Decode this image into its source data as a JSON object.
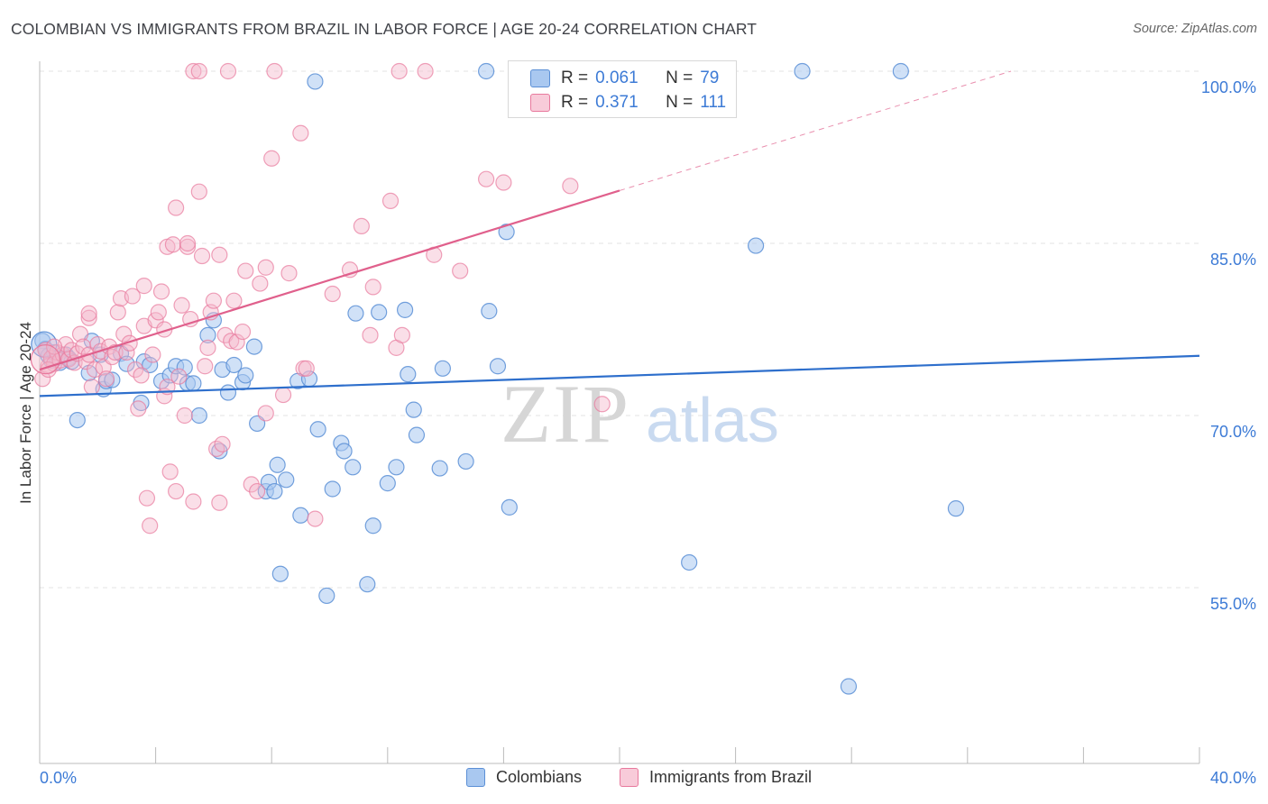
{
  "title": "COLOMBIAN VS IMMIGRANTS FROM BRAZIL IN LABOR FORCE | AGE 20-24 CORRELATION CHART",
  "source": "Source: ZipAtlas.com",
  "watermark": {
    "zip": "ZIP",
    "atlas": "atlas"
  },
  "legend": {
    "r_label": "R =",
    "n_label": "N =",
    "series": [
      {
        "r": "0.061",
        "n": "79"
      },
      {
        "r": "0.371",
        "n": "111"
      }
    ]
  },
  "bottom_legend": [
    "Colombians",
    "Immigrants from Brazil"
  ],
  "colors": {
    "blue_fill": "#a9c8f0",
    "blue_stroke": "#5b8fd6",
    "blue_line": "#2e6fcc",
    "pink_fill": "#f5b8cb",
    "pink_stroke": "#e8799d",
    "pink_line": "#e0608c",
    "tick_text": "#3d7bd6",
    "grid": "#e3e3e3"
  },
  "chart_data": {
    "type": "scatter",
    "title": "COLOMBIAN VS IMMIGRANTS FROM BRAZIL IN LABOR FORCE | AGE 20-24 CORRELATION CHART",
    "xlabel": "",
    "ylabel": "In Labor Force | Age 20-24",
    "xlim": [
      0,
      40
    ],
    "ylim": [
      40,
      102
    ],
    "x_tick_labels": [
      "0.0%",
      "40.0%"
    ],
    "y_ticks": [
      55,
      70,
      85,
      100
    ],
    "y_tick_labels": [
      "55.0%",
      "70.0%",
      "85.0%",
      "100.0%"
    ],
    "grid": true,
    "legend_position": "top-center",
    "series": [
      {
        "name": "Colombians",
        "r": 0.061,
        "n": 79,
        "trend": {
          "x": [
            0,
            40
          ],
          "y": [
            71.7,
            75.2
          ]
        },
        "points": [
          [
            0.1,
            76.5
          ],
          [
            0.2,
            75.8
          ],
          [
            0.3,
            75.2
          ],
          [
            0.4,
            74.8
          ],
          [
            0.5,
            75.5
          ],
          [
            0.6,
            75.0
          ],
          [
            0.7,
            74.6
          ],
          [
            0.9,
            75.3
          ],
          [
            1.0,
            75.0
          ],
          [
            1.1,
            74.7
          ],
          [
            1.3,
            69.6
          ],
          [
            1.7,
            73.7
          ],
          [
            1.8,
            76.5
          ],
          [
            2.1,
            75.3
          ],
          [
            2.2,
            72.3
          ],
          [
            2.3,
            73.0
          ],
          [
            2.5,
            73.1
          ],
          [
            2.8,
            75.4
          ],
          [
            3.0,
            74.5
          ],
          [
            3.5,
            71.1
          ],
          [
            3.6,
            74.7
          ],
          [
            3.8,
            74.4
          ],
          [
            4.2,
            73.0
          ],
          [
            4.5,
            73.5
          ],
          [
            4.7,
            74.3
          ],
          [
            5.0,
            74.2
          ],
          [
            5.1,
            72.8
          ],
          [
            5.3,
            72.8
          ],
          [
            5.5,
            70.0
          ],
          [
            5.8,
            77.0
          ],
          [
            6.0,
            78.3
          ],
          [
            6.2,
            66.9
          ],
          [
            6.3,
            74.0
          ],
          [
            6.5,
            72.0
          ],
          [
            6.7,
            74.4
          ],
          [
            7.0,
            72.9
          ],
          [
            7.1,
            73.5
          ],
          [
            7.4,
            76.0
          ],
          [
            7.5,
            69.3
          ],
          [
            7.8,
            63.4
          ],
          [
            7.9,
            64.2
          ],
          [
            8.1,
            63.4
          ],
          [
            8.2,
            65.7
          ],
          [
            8.3,
            56.2
          ],
          [
            8.5,
            64.4
          ],
          [
            8.9,
            73.0
          ],
          [
            9.0,
            61.3
          ],
          [
            9.3,
            73.2
          ],
          [
            9.5,
            99.1
          ],
          [
            9.6,
            68.8
          ],
          [
            9.9,
            54.3
          ],
          [
            10.1,
            63.6
          ],
          [
            10.4,
            67.6
          ],
          [
            10.5,
            66.9
          ],
          [
            10.8,
            65.5
          ],
          [
            10.9,
            78.9
          ],
          [
            11.3,
            55.3
          ],
          [
            11.5,
            60.4
          ],
          [
            11.7,
            79.0
          ],
          [
            12.0,
            64.1
          ],
          [
            12.3,
            65.5
          ],
          [
            12.6,
            79.2
          ],
          [
            12.7,
            73.6
          ],
          [
            12.9,
            70.5
          ],
          [
            13.0,
            68.3
          ],
          [
            13.8,
            65.4
          ],
          [
            13.9,
            74.1
          ],
          [
            14.7,
            66.0
          ],
          [
            15.4,
            100.0
          ],
          [
            15.5,
            79.1
          ],
          [
            15.8,
            74.3
          ],
          [
            16.1,
            86.0
          ],
          [
            16.2,
            62.0
          ],
          [
            22.4,
            57.2
          ],
          [
            24.7,
            84.8
          ],
          [
            26.3,
            100.0
          ],
          [
            27.9,
            46.4
          ],
          [
            29.7,
            100.0
          ],
          [
            31.6,
            61.9
          ]
        ]
      },
      {
        "name": "Immigrants from Brazil",
        "r": 0.371,
        "n": 111,
        "trend": {
          "x": [
            0,
            20
          ],
          "y": [
            74.0,
            89.6
          ]
        },
        "trend_extension": {
          "x": [
            20,
            33.5
          ],
          "y": [
            89.6,
            100.0
          ]
        },
        "points": [
          [
            0.1,
            73.2
          ],
          [
            0.2,
            75.7
          ],
          [
            0.3,
            74.3
          ],
          [
            0.4,
            75.0
          ],
          [
            0.5,
            74.5
          ],
          [
            0.6,
            75.5
          ],
          [
            0.7,
            74.8
          ],
          [
            0.8,
            75.3
          ],
          [
            0.9,
            76.2
          ],
          [
            1.0,
            74.9
          ],
          [
            1.1,
            75.7
          ],
          [
            1.2,
            74.6
          ],
          [
            1.3,
            75.4
          ],
          [
            1.4,
            77.1
          ],
          [
            1.5,
            76.0
          ],
          [
            1.6,
            74.7
          ],
          [
            1.7,
            75.3
          ],
          [
            1.8,
            72.5
          ],
          [
            1.7,
            78.5
          ],
          [
            1.7,
            78.9
          ],
          [
            1.9,
            74.0
          ],
          [
            2.0,
            76.2
          ],
          [
            2.1,
            75.6
          ],
          [
            2.2,
            74.2
          ],
          [
            2.3,
            73.2
          ],
          [
            2.4,
            76.0
          ],
          [
            2.5,
            75.1
          ],
          [
            2.6,
            75.5
          ],
          [
            2.7,
            79.0
          ],
          [
            2.8,
            80.2
          ],
          [
            2.9,
            77.1
          ],
          [
            3.0,
            75.5
          ],
          [
            3.1,
            76.3
          ],
          [
            3.2,
            80.4
          ],
          [
            3.3,
            74.0
          ],
          [
            3.4,
            70.6
          ],
          [
            3.5,
            73.5
          ],
          [
            3.6,
            81.3
          ],
          [
            3.6,
            77.8
          ],
          [
            3.7,
            62.8
          ],
          [
            3.8,
            60.4
          ],
          [
            3.9,
            75.3
          ],
          [
            4.0,
            78.3
          ],
          [
            4.1,
            79.0
          ],
          [
            4.2,
            80.8
          ],
          [
            4.3,
            77.5
          ],
          [
            4.3,
            71.7
          ],
          [
            4.4,
            72.5
          ],
          [
            4.4,
            84.7
          ],
          [
            4.5,
            65.1
          ],
          [
            4.6,
            84.9
          ],
          [
            4.7,
            63.4
          ],
          [
            4.7,
            88.1
          ],
          [
            4.8,
            73.4
          ],
          [
            4.9,
            79.6
          ],
          [
            5.0,
            70.0
          ],
          [
            5.1,
            84.7
          ],
          [
            5.1,
            85.0
          ],
          [
            5.2,
            78.4
          ],
          [
            5.3,
            62.5
          ],
          [
            5.3,
            100.0
          ],
          [
            5.5,
            100.0
          ],
          [
            5.5,
            89.5
          ],
          [
            5.6,
            83.9
          ],
          [
            5.7,
            74.3
          ],
          [
            5.8,
            75.9
          ],
          [
            5.9,
            79.0
          ],
          [
            6.0,
            80.0
          ],
          [
            6.1,
            67.1
          ],
          [
            6.2,
            62.4
          ],
          [
            6.2,
            84.0
          ],
          [
            6.3,
            67.5
          ],
          [
            6.4,
            77.0
          ],
          [
            6.5,
            100.0
          ],
          [
            6.6,
            76.5
          ],
          [
            6.7,
            80.0
          ],
          [
            6.8,
            76.4
          ],
          [
            7.0,
            77.3
          ],
          [
            7.1,
            82.6
          ],
          [
            7.3,
            64.0
          ],
          [
            7.5,
            63.4
          ],
          [
            7.6,
            81.5
          ],
          [
            7.8,
            70.2
          ],
          [
            7.8,
            82.9
          ],
          [
            8.0,
            92.4
          ],
          [
            8.1,
            100.0
          ],
          [
            8.4,
            71.8
          ],
          [
            8.6,
            82.4
          ],
          [
            9.0,
            94.6
          ],
          [
            9.1,
            74.1
          ],
          [
            9.2,
            74.1
          ],
          [
            9.5,
            61.0
          ],
          [
            10.1,
            80.6
          ],
          [
            10.7,
            82.7
          ],
          [
            11.1,
            86.5
          ],
          [
            11.4,
            77.0
          ],
          [
            11.5,
            81.2
          ],
          [
            12.1,
            88.7
          ],
          [
            12.3,
            75.9
          ],
          [
            12.5,
            77.0
          ],
          [
            12.4,
            100.0
          ],
          [
            13.3,
            100.0
          ],
          [
            13.6,
            84.0
          ],
          [
            14.5,
            82.6
          ],
          [
            15.4,
            90.6
          ],
          [
            16.0,
            90.3
          ],
          [
            17.5,
            100.0
          ],
          [
            18.3,
            90.0
          ],
          [
            19.4,
            71.0
          ],
          [
            0.3,
            74.0
          ],
          [
            0.5,
            76.0
          ]
        ]
      }
    ]
  }
}
